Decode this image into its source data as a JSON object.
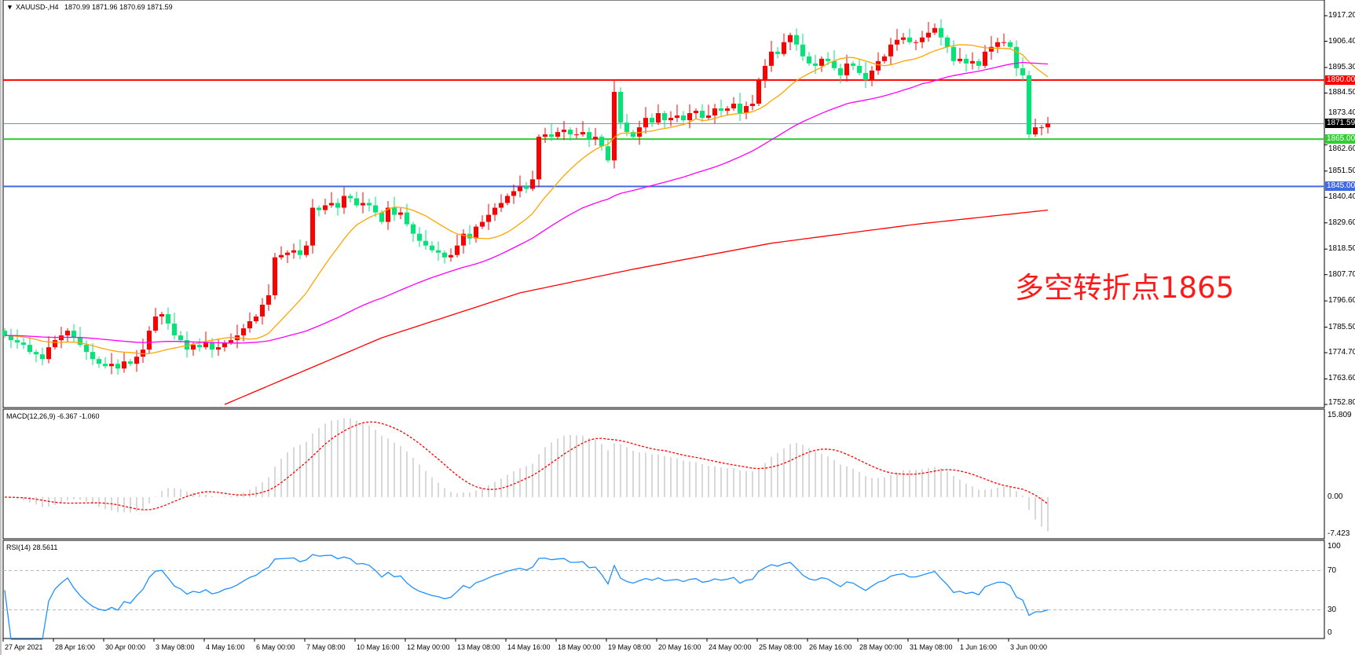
{
  "header": {
    "symbol": "XAUUSD-,H4",
    "ohlc": "1870.99 1871.96 1870.69 1871.59"
  },
  "macd_label": "MACD(12,26,9) -6.367 -1.060",
  "rsi_label": "RSI(14) 28.5611",
  "annotation": "多空转折点1865",
  "colors": {
    "bull": "#ff0000",
    "bear": "#00e676",
    "ma_fast": "#ffa500",
    "ma_mid": "#ff00ff",
    "ma_slow": "#ff0000",
    "rsi": "#1e90ff",
    "macd_hist": "#b0b0b0",
    "macd_signal": "#ff0000"
  },
  "levels": [
    {
      "price": 1890.0,
      "label": "1890.00",
      "color": "#ff0000"
    },
    {
      "price": 1871.59,
      "label": "1871.59",
      "color": "#000000",
      "line_color": "#778899"
    },
    {
      "price": 1865.0,
      "label": "1865.00",
      "color": "#32cd32"
    },
    {
      "price": 1845.0,
      "label": "1845.00",
      "color": "#4169e1"
    }
  ],
  "price_axis": [
    "1917.20",
    "1906.40",
    "1895.30",
    "1884.50",
    "1873.40",
    "1862.60",
    "1851.50",
    "1840.40",
    "1829.60",
    "1818.50",
    "1807.70",
    "1796.60",
    "1785.50",
    "1774.70",
    "1763.60",
    "1752.80"
  ],
  "macd_axis": [
    "15.809",
    "0.00",
    "-7.423"
  ],
  "rsi_axis": [
    "100",
    "70",
    "30",
    "0"
  ],
  "time_axis": [
    "27 Apr 2021",
    "28 Apr 16:00",
    "30 Apr 00:00",
    "3 May 08:00",
    "4 May 16:00",
    "6 May 00:00",
    "7 May 08:00",
    "10 May 16:00",
    "12 May 00:00",
    "13 May 08:00",
    "14 May 16:00",
    "18 May 00:00",
    "19 May 08:00",
    "20 May 16:00",
    "24 May 00:00",
    "25 May 08:00",
    "26 May 16:00",
    "28 May 00:00",
    "31 May 08:00",
    "1 Jun 16:00",
    "3 Jun 00:00"
  ],
  "chart_data": {
    "type": "candlestick",
    "timeframe": "H4",
    "ylim": [
      1752.8,
      1917.2
    ],
    "first_open": 1784,
    "closes": [
      1782,
      1780,
      1779,
      1778,
      1775,
      1774,
      1772,
      1777,
      1780,
      1782,
      1784,
      1781,
      1778,
      1775,
      1772,
      1770,
      1769,
      1770,
      1768,
      1771,
      1770,
      1773,
      1776,
      1784,
      1790,
      1791,
      1787,
      1782,
      1780,
      1776,
      1778,
      1777,
      1779,
      1776,
      1777,
      1779,
      1780,
      1782,
      1785,
      1788,
      1790,
      1795,
      1799,
      1815,
      1816,
      1817,
      1818,
      1816,
      1820,
      1836,
      1835,
      1837,
      1838,
      1836,
      1841,
      1840,
      1837,
      1838,
      1837,
      1834,
      1830,
      1836,
      1833,
      1834,
      1829,
      1825,
      1822,
      1820,
      1818,
      1817,
      1815,
      1816,
      1820,
      1825,
      1823,
      1828,
      1830,
      1833,
      1836,
      1838,
      1841,
      1843,
      1845,
      1844,
      1848,
      1866,
      1867,
      1866,
      1868,
      1869,
      1867,
      1867,
      1868,
      1865,
      1866,
      1862,
      1856,
      1885,
      1872,
      1868,
      1866,
      1870,
      1874,
      1872,
      1876,
      1873,
      1874,
      1875,
      1873,
      1876,
      1877,
      1874,
      1875,
      1878,
      1877,
      1878,
      1880,
      1876,
      1879,
      1880,
      1890,
      1896,
      1902,
      1901,
      1906,
      1909,
      1905,
      1900,
      1897,
      1896,
      1899,
      1898,
      1895,
      1892,
      1897,
      1896,
      1893,
      1890,
      1894,
      1898,
      1900,
      1905,
      1907,
      1908,
      1906,
      1906,
      1908,
      1910,
      1912,
      1908,
      1904,
      1898,
      1899,
      1897,
      1898,
      1896,
      1902,
      1904,
      1906,
      1906,
      1904,
      1895,
      1892,
      1867,
      1870,
      1870,
      1871.59
    ],
    "slow_ma": [
      [
        35,
        1752.8
      ],
      [
        60,
        1781
      ],
      [
        82,
        1800
      ],
      [
        100,
        1810
      ],
      [
        122,
        1821
      ],
      [
        145,
        1829
      ],
      [
        166,
        1835
      ]
    ],
    "macd_range": [
      -7.423,
      15.809
    ],
    "rsi_range": [
      0,
      100
    ],
    "rsi_levels": [
      30,
      70
    ]
  }
}
